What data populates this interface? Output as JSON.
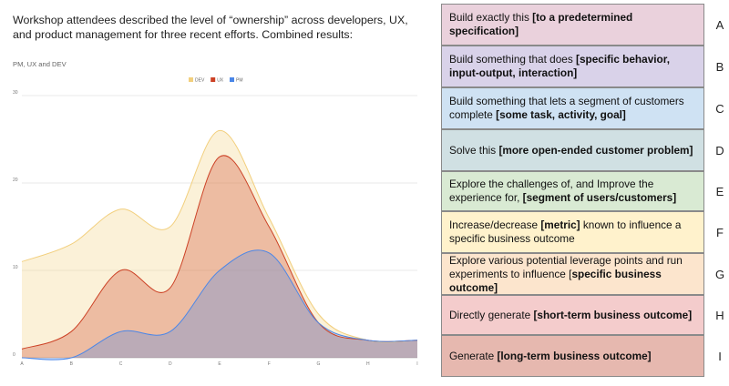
{
  "intro": {
    "line1": "Workshop attendees described the level of “ownership” across developers, UX,",
    "line2": "and product management for three recent efforts. Combined results:"
  },
  "chart_data": {
    "type": "area",
    "stacked": false,
    "title": "PM, UX and DEV",
    "xlabel": "",
    "ylabel": "",
    "categories": [
      "A",
      "B",
      "C",
      "D",
      "E",
      "F",
      "G",
      "H",
      "I"
    ],
    "series": [
      {
        "name": "DEV",
        "color": "#f2cf7d",
        "values": [
          11,
          13,
          17,
          15,
          26,
          16,
          5,
          2,
          2
        ]
      },
      {
        "name": "UX",
        "color": "#cc4125",
        "values": [
          1,
          3,
          10,
          8,
          23,
          15,
          4,
          2,
          2
        ]
      },
      {
        "name": "PM",
        "color": "#4a86e8",
        "values": [
          0,
          0,
          3,
          3,
          10,
          12,
          4,
          2,
          2
        ]
      }
    ],
    "y_ticks": [
      0,
      10,
      20,
      30
    ],
    "ylim": [
      0,
      30
    ],
    "grid": true,
    "legend": "top-center"
  },
  "options": [
    {
      "letter": "A",
      "color": "#ead1dc",
      "parts": [
        {
          "text": "Build exactly this "
        },
        {
          "text": "[to a predetermined specification]",
          "bold": true
        }
      ]
    },
    {
      "letter": "B",
      "color": "#d9d2e9",
      "parts": [
        {
          "text": "Build something that does "
        },
        {
          "text": "[specific behavior, input-output, interaction]",
          "bold": true
        }
      ]
    },
    {
      "letter": "C",
      "color": "#cfe2f3",
      "parts": [
        {
          "text": "Build something that lets a segment of customers complete "
        },
        {
          "text": "[some task, activity, goal]",
          "bold": true
        }
      ]
    },
    {
      "letter": "D",
      "color": "#d0e0e3",
      "parts": [
        {
          "text": "Solve this "
        },
        {
          "text": "[more open-ended customer problem]",
          "bold": true
        }
      ]
    },
    {
      "letter": "E",
      "color": "#d9ead3",
      "parts": [
        {
          "text": "Explore the challenges of, and Improve the experience for, "
        },
        {
          "text": "[segment of users/customers]",
          "bold": true
        }
      ]
    },
    {
      "letter": "F",
      "color": "#fff2cc",
      "parts": [
        {
          "text": "Increase/decrease "
        },
        {
          "text": "[metric]",
          "bold": true
        },
        {
          "text": " known to influence a specific business outcome"
        }
      ]
    },
    {
      "letter": "G",
      "color": "#fce5cd",
      "parts": [
        {
          "text": "Explore various potential leverage points and run experiments to influence ["
        },
        {
          "text": "specific business outcome]",
          "bold": true
        }
      ]
    },
    {
      "letter": "H",
      "color": "#f4cccc",
      "parts": [
        {
          "text": "Directly generate "
        },
        {
          "text": "[short-term business outcome]",
          "bold": true
        }
      ]
    },
    {
      "letter": "I",
      "color": "#e6b8af",
      "parts": [
        {
          "text": "Generate "
        },
        {
          "text": "[long-term business outcome]",
          "bold": true
        }
      ]
    }
  ]
}
